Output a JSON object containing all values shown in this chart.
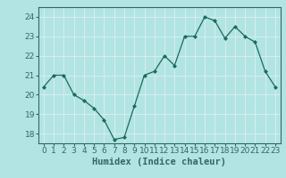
{
  "x": [
    0,
    1,
    2,
    3,
    4,
    5,
    6,
    7,
    8,
    9,
    10,
    11,
    12,
    13,
    14,
    15,
    16,
    17,
    18,
    19,
    20,
    21,
    22,
    23
  ],
  "y": [
    20.4,
    21.0,
    21.0,
    20.0,
    19.7,
    19.3,
    18.7,
    17.7,
    17.8,
    19.4,
    21.0,
    21.2,
    22.0,
    21.5,
    23.0,
    23.0,
    24.0,
    23.8,
    22.9,
    23.5,
    23.0,
    22.7,
    21.2,
    20.4
  ],
  "line_color": "#1a6b5a",
  "marker": "D",
  "marker_size": 2.0,
  "bg_color": "#b2e4e4",
  "grid_color": "#c8ecec",
  "xlabel": "Humidex (Indice chaleur)",
  "ylim": [
    17.5,
    24.5
  ],
  "xlim": [
    -0.5,
    23.5
  ],
  "yticks": [
    18,
    19,
    20,
    21,
    22,
    23,
    24
  ],
  "xticks": [
    0,
    1,
    2,
    3,
    4,
    5,
    6,
    7,
    8,
    9,
    10,
    11,
    12,
    13,
    14,
    15,
    16,
    17,
    18,
    19,
    20,
    21,
    22,
    23
  ],
  "tick_fontsize": 6.5,
  "xlabel_fontsize": 7.5,
  "spine_color": "#336666",
  "tick_color": "#336666",
  "label_color": "#336666"
}
